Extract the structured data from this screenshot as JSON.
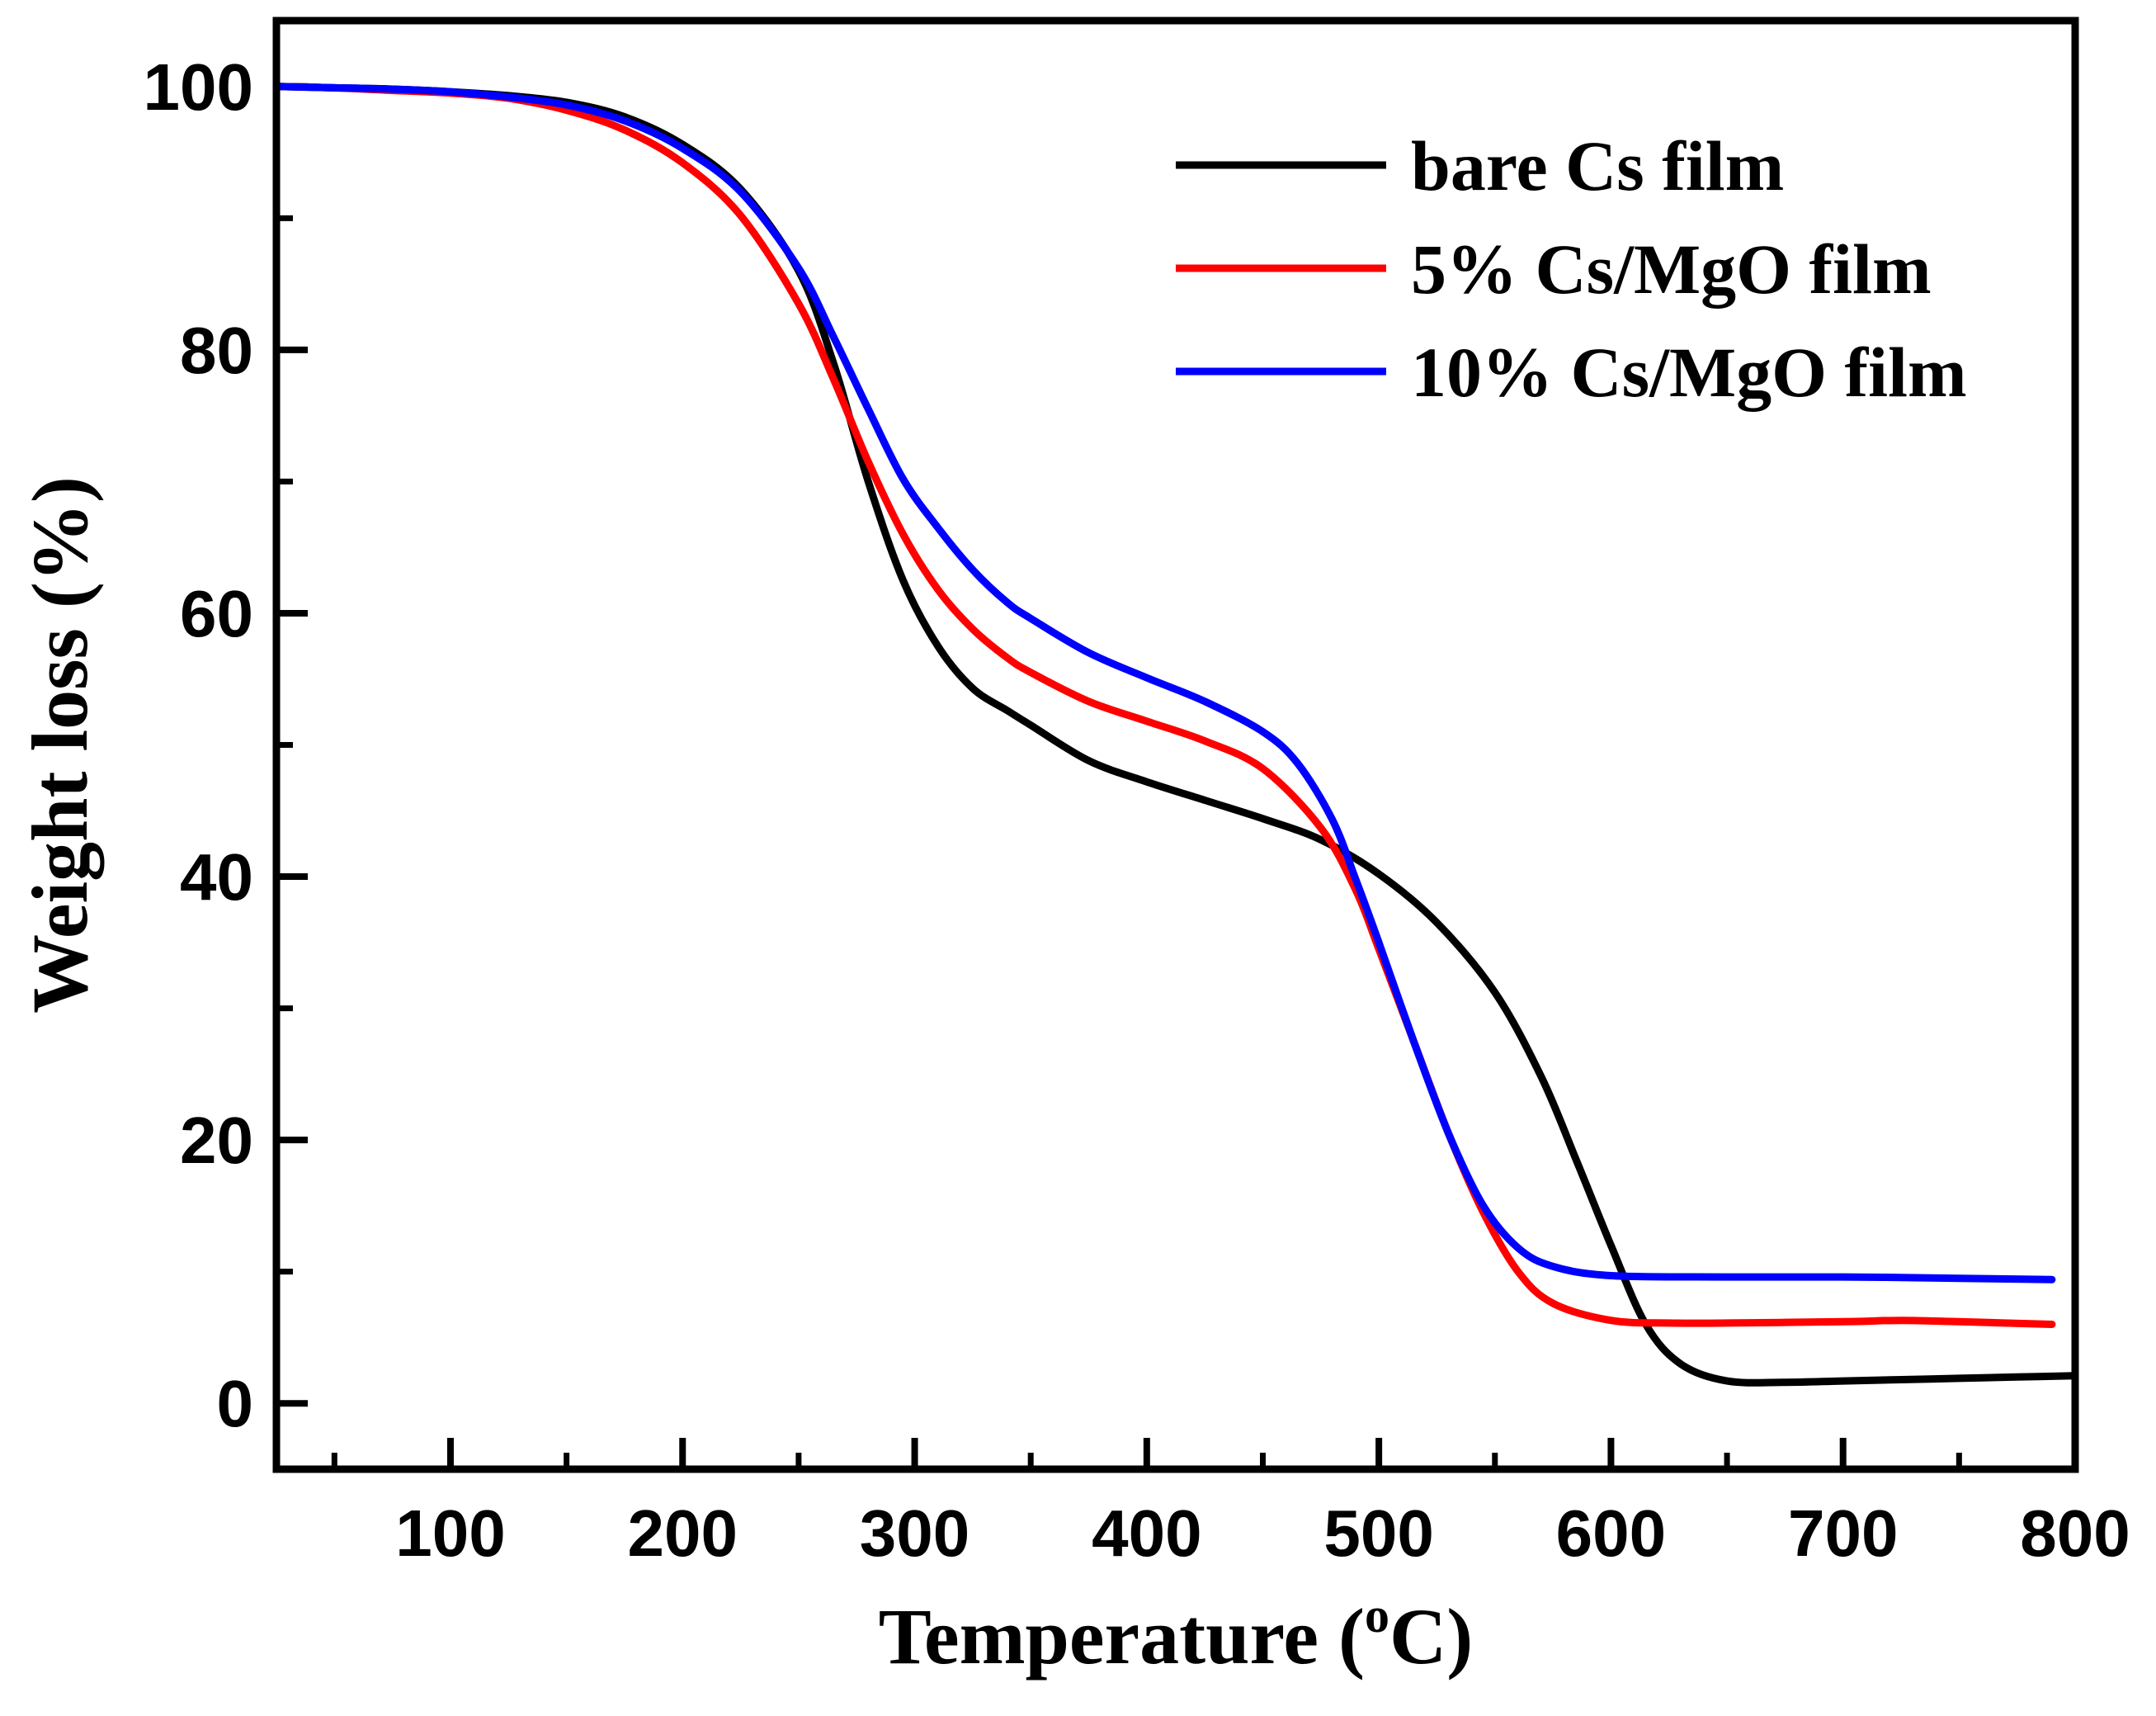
{
  "chart_data": {
    "type": "line",
    "title": "",
    "xlabel": "Temperature (",
    "xlabel_sup": "o",
    "xlabel_unit": "C)",
    "ylabel": "Weight loss (%)",
    "xlim": [
      25,
      800
    ],
    "ylim": [
      -5,
      105
    ],
    "xticks": [
      100,
      200,
      300,
      400,
      500,
      600,
      700,
      800
    ],
    "yticks": [
      0,
      20,
      40,
      60,
      80,
      100
    ],
    "x_minor_step": 50,
    "y_minor_step": 10,
    "legend_position": "top-right",
    "series": [
      {
        "name": "bare Cs film",
        "color": "#000000",
        "points": [
          [
            25,
            100
          ],
          [
            50,
            99.9
          ],
          [
            75,
            99.8
          ],
          [
            100,
            99.6
          ],
          [
            125,
            99.3
          ],
          [
            150,
            98.8
          ],
          [
            175,
            97.7
          ],
          [
            200,
            95.6
          ],
          [
            225,
            92.2
          ],
          [
            250,
            86
          ],
          [
            265,
            79
          ],
          [
            280,
            70
          ],
          [
            295,
            62.5
          ],
          [
            310,
            57.5
          ],
          [
            325,
            54.3
          ],
          [
            340,
            52.6
          ],
          [
            350,
            51.5
          ],
          [
            375,
            48.8
          ],
          [
            400,
            47.2
          ],
          [
            425,
            45.8
          ],
          [
            450,
            44.4
          ],
          [
            475,
            42.8
          ],
          [
            500,
            40.2
          ],
          [
            525,
            36.5
          ],
          [
            550,
            31.2
          ],
          [
            570,
            24.8
          ],
          [
            585,
            18.5
          ],
          [
            600,
            12
          ],
          [
            615,
            6
          ],
          [
            630,
            3
          ],
          [
            650,
            1.7
          ],
          [
            675,
            1.6
          ],
          [
            700,
            1.7
          ],
          [
            725,
            1.8
          ],
          [
            750,
            1.9
          ],
          [
            775,
            2
          ],
          [
            800,
            2.1
          ]
        ]
      },
      {
        "name": "5% Cs/MgO film",
        "color": "#ff0000",
        "points": [
          [
            25,
            100
          ],
          [
            50,
            99.9
          ],
          [
            75,
            99.7
          ],
          [
            100,
            99.5
          ],
          [
            125,
            99.1
          ],
          [
            150,
            98.2
          ],
          [
            175,
            96.7
          ],
          [
            200,
            94.2
          ],
          [
            225,
            90.2
          ],
          [
            250,
            83.5
          ],
          [
            265,
            77.8
          ],
          [
            280,
            71.5
          ],
          [
            295,
            66
          ],
          [
            310,
            61.8
          ],
          [
            325,
            58.8
          ],
          [
            340,
            56.6
          ],
          [
            350,
            55.5
          ],
          [
            375,
            53.3
          ],
          [
            400,
            51.8
          ],
          [
            425,
            50.3
          ],
          [
            450,
            48.2
          ],
          [
            475,
            43.7
          ],
          [
            490,
            39
          ],
          [
            500,
            34.5
          ],
          [
            515,
            27.5
          ],
          [
            530,
            20.5
          ],
          [
            545,
            14.5
          ],
          [
            560,
            10
          ],
          [
            575,
            7.6
          ],
          [
            600,
            6.3
          ],
          [
            625,
            6.1
          ],
          [
            650,
            6.1
          ],
          [
            700,
            6.2
          ],
          [
            725,
            6.3
          ],
          [
            750,
            6.2
          ],
          [
            790,
            6
          ]
        ]
      },
      {
        "name": "10% Cs/MgO film",
        "color": "#0000ff",
        "points": [
          [
            25,
            100
          ],
          [
            50,
            99.9
          ],
          [
            75,
            99.8
          ],
          [
            100,
            99.6
          ],
          [
            125,
            99.2
          ],
          [
            150,
            98.6
          ],
          [
            175,
            97.4
          ],
          [
            200,
            95.3
          ],
          [
            225,
            92
          ],
          [
            250,
            86.2
          ],
          [
            265,
            81
          ],
          [
            280,
            75.5
          ],
          [
            295,
            70.2
          ],
          [
            310,
            66.5
          ],
          [
            325,
            63.3
          ],
          [
            340,
            60.8
          ],
          [
            350,
            59.6
          ],
          [
            375,
            57
          ],
          [
            400,
            55.1
          ],
          [
            425,
            53.3
          ],
          [
            450,
            51
          ],
          [
            465,
            48.6
          ],
          [
            480,
            44.3
          ],
          [
            490,
            39.8
          ],
          [
            500,
            35
          ],
          [
            515,
            27.5
          ],
          [
            530,
            20.5
          ],
          [
            545,
            15
          ],
          [
            560,
            11.8
          ],
          [
            575,
            10.4
          ],
          [
            600,
            9.7
          ],
          [
            650,
            9.6
          ],
          [
            700,
            9.6
          ],
          [
            750,
            9.5
          ],
          [
            790,
            9.4
          ]
        ]
      }
    ]
  }
}
